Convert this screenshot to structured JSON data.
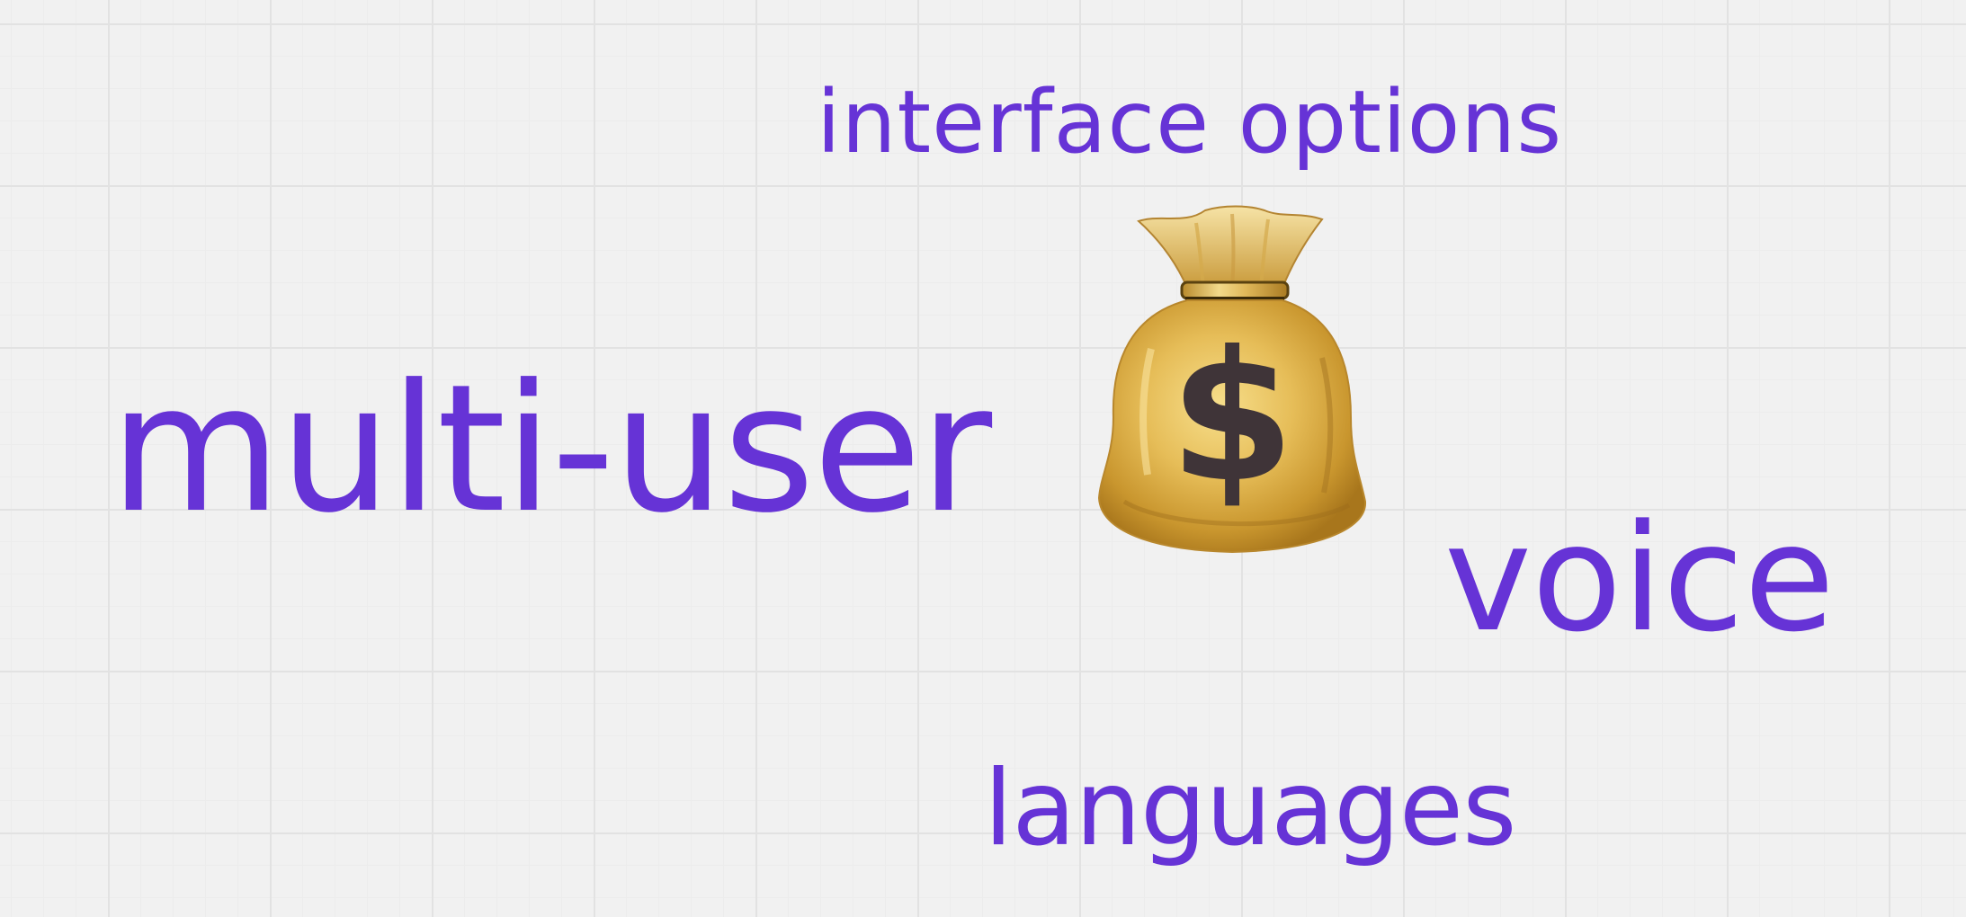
{
  "diagram": {
    "center_icon": "money-bag-icon",
    "center_icon_symbol": "$",
    "labels": {
      "interface_options": "interface options",
      "multi_user": "multi-user",
      "voice": "voice",
      "languages": "languages"
    },
    "colors": {
      "text": "#6633d6",
      "background": "#f1f1f1",
      "grid": "#e2e2e2",
      "bag_gold": "#d4a93e",
      "dollar": "#3f3438"
    }
  }
}
